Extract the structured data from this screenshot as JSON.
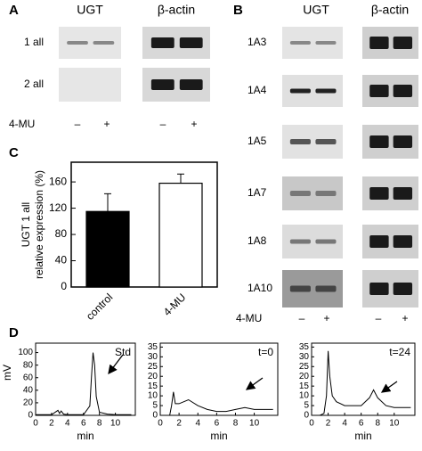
{
  "panel_A": {
    "letter": "A",
    "columns": [
      "UGT",
      "β-actin"
    ],
    "rows": [
      "1 all",
      "2 all"
    ],
    "treatment": "4-MU",
    "lanes": [
      "–",
      "+",
      "–",
      "+"
    ]
  },
  "panel_B": {
    "letter": "B",
    "columns": [
      "UGT",
      "β-actin"
    ],
    "rows": [
      "1A3",
      "1A4",
      "1A5",
      "1A7",
      "1A8",
      "1A10"
    ],
    "treatment": "4-MU",
    "lanes": [
      "–",
      "+",
      "–",
      "+"
    ]
  },
  "panel_C": {
    "letter": "C"
  },
  "panel_D": {
    "letter": "D"
  },
  "chart_data": [
    {
      "type": "bar",
      "y_label_lines": [
        "UGT 1 all",
        "relative expression (%)"
      ],
      "categories": [
        "control",
        "4-MU"
      ],
      "values": [
        115,
        158
      ],
      "errors": [
        27,
        14
      ],
      "colors": [
        "#000000",
        "#ffffff"
      ],
      "ylim": [
        0,
        190
      ],
      "yticks": [
        0,
        40,
        80,
        120,
        160
      ]
    },
    {
      "type": "line",
      "title": "Std",
      "y_label": "mV",
      "x_label": "min",
      "x": [
        0,
        1,
        2,
        2.8,
        3,
        3.2,
        3.5,
        4,
        5,
        6,
        6.8,
        7,
        7.2,
        7.4,
        7.6,
        8,
        9,
        10,
        11,
        12
      ],
      "series": [
        {
          "color": "#000000",
          "values": [
            1,
            1,
            1,
            8,
            3,
            7,
            2,
            1,
            1,
            1,
            15,
            60,
            100,
            80,
            30,
            5,
            2,
            1,
            1,
            1
          ]
        }
      ],
      "xlim": [
        0,
        12.5
      ],
      "xticks": [
        0,
        2,
        4,
        6,
        8,
        10
      ],
      "ylim": [
        0,
        115
      ],
      "yticks": [
        0,
        20,
        40,
        60,
        80,
        100
      ]
    },
    {
      "type": "line",
      "title": "t=0",
      "x_label": "min",
      "x": [
        0,
        1,
        1.2,
        1.4,
        1.6,
        2,
        3,
        4,
        5,
        6,
        7,
        8,
        9,
        10,
        11,
        12
      ],
      "series": [
        {
          "color": "#000000",
          "values": [
            0,
            0,
            5,
            12,
            6,
            6,
            8,
            5,
            3,
            2,
            2,
            3,
            4,
            3,
            3,
            3
          ]
        }
      ],
      "xlim": [
        0,
        12.5
      ],
      "xticks": [
        0,
        2,
        4,
        6,
        8,
        10
      ],
      "ylim": [
        0,
        37
      ],
      "yticks": [
        0,
        5,
        10,
        15,
        20,
        25,
        30,
        35
      ]
    },
    {
      "type": "line",
      "title": "t=24",
      "x_label": "min",
      "x": [
        0,
        1,
        1.5,
        1.8,
        2,
        2.2,
        2.5,
        3,
        4,
        5,
        6,
        7,
        7.5,
        8,
        9,
        10,
        11,
        12
      ],
      "series": [
        {
          "color": "#000000",
          "values": [
            0,
            0,
            1,
            10,
            33,
            20,
            10,
            7,
            5,
            5,
            5,
            9,
            13,
            9,
            5,
            4,
            4,
            4
          ]
        }
      ],
      "xlim": [
        0,
        12.5
      ],
      "xticks": [
        0,
        2,
        4,
        6,
        8,
        10
      ],
      "ylim": [
        0,
        37
      ],
      "yticks": [
        0,
        5,
        10,
        15,
        20,
        25,
        30,
        35
      ]
    }
  ]
}
